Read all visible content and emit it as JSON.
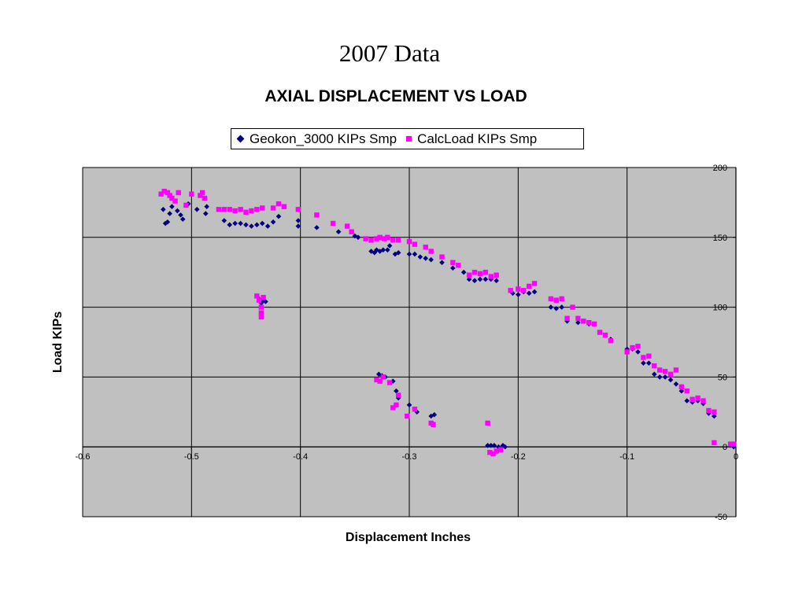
{
  "slide_title": "2007 Data",
  "chart_data": {
    "type": "scatter",
    "title": "AXIAL DISPLACEMENT VS LOAD",
    "xlabel": "Displacement Inches",
    "ylabel": "Load KIPs",
    "xlim": [
      -0.6,
      0
    ],
    "ylim": [
      -50,
      200
    ],
    "x_ticks": [
      "-0.6",
      "-0.5",
      "-0.4",
      "-0.3",
      "-0.2",
      "-0.1",
      "0"
    ],
    "y_ticks": [
      "200",
      "150",
      "100",
      "50",
      "0",
      "-50"
    ],
    "x_tick_values": [
      -0.6,
      -0.5,
      -0.4,
      -0.3,
      -0.2,
      -0.1,
      0
    ],
    "y_tick_values": [
      200,
      150,
      100,
      50,
      0,
      -50
    ],
    "grid": true,
    "legend_position": "top",
    "plot_background": "#c0c0c0",
    "series": [
      {
        "name": "Geokon_3000 KIPs Smp",
        "color": "#000080",
        "marker": "diamond",
        "points": [
          [
            -0.526,
            170
          ],
          [
            -0.524,
            160
          ],
          [
            -0.522,
            161
          ],
          [
            -0.52,
            167
          ],
          [
            -0.518,
            172
          ],
          [
            -0.513,
            169
          ],
          [
            -0.51,
            166
          ],
          [
            -0.508,
            163
          ],
          [
            -0.503,
            174
          ],
          [
            -0.495,
            170
          ],
          [
            -0.487,
            167
          ],
          [
            -0.486,
            172
          ],
          [
            -0.47,
            162
          ],
          [
            -0.465,
            159
          ],
          [
            -0.46,
            160
          ],
          [
            -0.455,
            160
          ],
          [
            -0.45,
            159
          ],
          [
            -0.445,
            158
          ],
          [
            -0.44,
            159
          ],
          [
            -0.435,
            160
          ],
          [
            -0.43,
            158
          ],
          [
            -0.425,
            161
          ],
          [
            -0.42,
            165
          ],
          [
            -0.402,
            158
          ],
          [
            -0.402,
            162
          ],
          [
            -0.385,
            157
          ],
          [
            -0.365,
            154
          ],
          [
            -0.35,
            151
          ],
          [
            -0.347,
            150
          ],
          [
            -0.335,
            140
          ],
          [
            -0.332,
            139
          ],
          [
            -0.33,
            141
          ],
          [
            -0.327,
            140
          ],
          [
            -0.324,
            141
          ],
          [
            -0.32,
            141
          ],
          [
            -0.318,
            144
          ],
          [
            -0.313,
            138
          ],
          [
            -0.31,
            139
          ],
          [
            -0.3,
            138
          ],
          [
            -0.295,
            138
          ],
          [
            -0.29,
            136
          ],
          [
            -0.285,
            135
          ],
          [
            -0.28,
            134
          ],
          [
            -0.27,
            132
          ],
          [
            -0.26,
            128
          ],
          [
            -0.25,
            125
          ],
          [
            -0.245,
            120
          ],
          [
            -0.24,
            119
          ],
          [
            -0.235,
            120
          ],
          [
            -0.23,
            120
          ],
          [
            -0.225,
            120
          ],
          [
            -0.22,
            119
          ],
          [
            -0.205,
            110
          ],
          [
            -0.2,
            109
          ],
          [
            -0.195,
            111
          ],
          [
            -0.19,
            110
          ],
          [
            -0.185,
            111
          ],
          [
            -0.17,
            100
          ],
          [
            -0.165,
            99
          ],
          [
            -0.16,
            100
          ],
          [
            -0.155,
            90
          ],
          [
            -0.145,
            89
          ],
          [
            -0.14,
            90
          ],
          [
            -0.135,
            88
          ],
          [
            -0.125,
            82
          ],
          [
            -0.12,
            80
          ],
          [
            -0.115,
            77
          ],
          [
            -0.1,
            70
          ],
          [
            -0.095,
            70
          ],
          [
            -0.09,
            68
          ],
          [
            -0.085,
            60
          ],
          [
            -0.08,
            60
          ],
          [
            -0.075,
            52
          ],
          [
            -0.07,
            50
          ],
          [
            -0.065,
            50
          ],
          [
            -0.06,
            48
          ],
          [
            -0.055,
            45
          ],
          [
            -0.05,
            40
          ],
          [
            -0.045,
            33
          ],
          [
            -0.04,
            32
          ],
          [
            -0.035,
            33
          ],
          [
            -0.03,
            31
          ],
          [
            -0.025,
            24
          ],
          [
            -0.02,
            22
          ],
          [
            -0.005,
            1
          ],
          [
            -0.002,
            0
          ],
          [
            -0.438,
            106
          ],
          [
            -0.436,
            103
          ],
          [
            -0.434,
            105
          ],
          [
            -0.432,
            104
          ],
          [
            -0.328,
            52
          ],
          [
            -0.325,
            51
          ],
          [
            -0.322,
            50
          ],
          [
            -0.315,
            47
          ],
          [
            -0.312,
            40
          ],
          [
            -0.31,
            35
          ],
          [
            -0.3,
            30
          ],
          [
            -0.293,
            25
          ],
          [
            -0.28,
            22
          ],
          [
            -0.277,
            23
          ],
          [
            -0.228,
            1
          ],
          [
            -0.225,
            1
          ],
          [
            -0.222,
            1
          ],
          [
            -0.218,
            0
          ],
          [
            -0.214,
            1
          ],
          [
            -0.212,
            0
          ]
        ]
      },
      {
        "name": "CalcLoad KIPs Smp",
        "color": "#ff00ff",
        "marker": "square",
        "points": [
          [
            -0.528,
            181
          ],
          [
            -0.525,
            183
          ],
          [
            -0.522,
            182
          ],
          [
            -0.52,
            180
          ],
          [
            -0.518,
            178
          ],
          [
            -0.515,
            176
          ],
          [
            -0.512,
            182
          ],
          [
            -0.505,
            173
          ],
          [
            -0.5,
            181
          ],
          [
            -0.492,
            180
          ],
          [
            -0.49,
            182
          ],
          [
            -0.488,
            178
          ],
          [
            -0.475,
            170
          ],
          [
            -0.47,
            170
          ],
          [
            -0.465,
            170
          ],
          [
            -0.46,
            169
          ],
          [
            -0.455,
            170
          ],
          [
            -0.45,
            168
          ],
          [
            -0.445,
            169
          ],
          [
            -0.44,
            170
          ],
          [
            -0.435,
            171
          ],
          [
            -0.425,
            171
          ],
          [
            -0.42,
            174
          ],
          [
            -0.415,
            172
          ],
          [
            -0.402,
            170
          ],
          [
            -0.385,
            166
          ],
          [
            -0.37,
            160
          ],
          [
            -0.357,
            158
          ],
          [
            -0.353,
            154
          ],
          [
            -0.34,
            149
          ],
          [
            -0.335,
            148
          ],
          [
            -0.33,
            149
          ],
          [
            -0.327,
            150
          ],
          [
            -0.323,
            149
          ],
          [
            -0.32,
            150
          ],
          [
            -0.315,
            148
          ],
          [
            -0.31,
            148
          ],
          [
            -0.3,
            147
          ],
          [
            -0.295,
            145
          ],
          [
            -0.285,
            143
          ],
          [
            -0.28,
            140
          ],
          [
            -0.27,
            136
          ],
          [
            -0.26,
            132
          ],
          [
            -0.255,
            130
          ],
          [
            -0.245,
            123
          ],
          [
            -0.24,
            125
          ],
          [
            -0.235,
            124
          ],
          [
            -0.23,
            125
          ],
          [
            -0.225,
            122
          ],
          [
            -0.22,
            123
          ],
          [
            -0.207,
            112
          ],
          [
            -0.2,
            113
          ],
          [
            -0.195,
            112
          ],
          [
            -0.19,
            115
          ],
          [
            -0.185,
            117
          ],
          [
            -0.17,
            106
          ],
          [
            -0.165,
            105
          ],
          [
            -0.16,
            106
          ],
          [
            -0.155,
            92
          ],
          [
            -0.15,
            100
          ],
          [
            -0.145,
            92
          ],
          [
            -0.14,
            90
          ],
          [
            -0.135,
            89
          ],
          [
            -0.13,
            88
          ],
          [
            -0.125,
            82
          ],
          [
            -0.12,
            80
          ],
          [
            -0.115,
            76
          ],
          [
            -0.1,
            68
          ],
          [
            -0.095,
            71
          ],
          [
            -0.09,
            72
          ],
          [
            -0.085,
            64
          ],
          [
            -0.08,
            65
          ],
          [
            -0.075,
            58
          ],
          [
            -0.07,
            55
          ],
          [
            -0.065,
            54
          ],
          [
            -0.06,
            52
          ],
          [
            -0.055,
            55
          ],
          [
            -0.05,
            43
          ],
          [
            -0.045,
            40
          ],
          [
            -0.04,
            34
          ],
          [
            -0.035,
            35
          ],
          [
            -0.03,
            33
          ],
          [
            -0.025,
            26
          ],
          [
            -0.02,
            25
          ],
          [
            -0.02,
            3
          ],
          [
            -0.005,
            2
          ],
          [
            -0.002,
            2
          ],
          [
            -0.44,
            108
          ],
          [
            -0.438,
            105
          ],
          [
            -0.436,
            100
          ],
          [
            -0.436,
            96
          ],
          [
            -0.436,
            93
          ],
          [
            -0.434,
            107
          ],
          [
            -0.33,
            48
          ],
          [
            -0.327,
            47
          ],
          [
            -0.324,
            50
          ],
          [
            -0.318,
            46
          ],
          [
            -0.315,
            28
          ],
          [
            -0.312,
            30
          ],
          [
            -0.31,
            37
          ],
          [
            -0.302,
            22
          ],
          [
            -0.295,
            27
          ],
          [
            -0.28,
            17
          ],
          [
            -0.278,
            16
          ],
          [
            -0.228,
            17
          ],
          [
            -0.226,
            -4
          ],
          [
            -0.223,
            -5
          ],
          [
            -0.22,
            -3
          ],
          [
            -0.216,
            -2
          ]
        ]
      }
    ]
  }
}
